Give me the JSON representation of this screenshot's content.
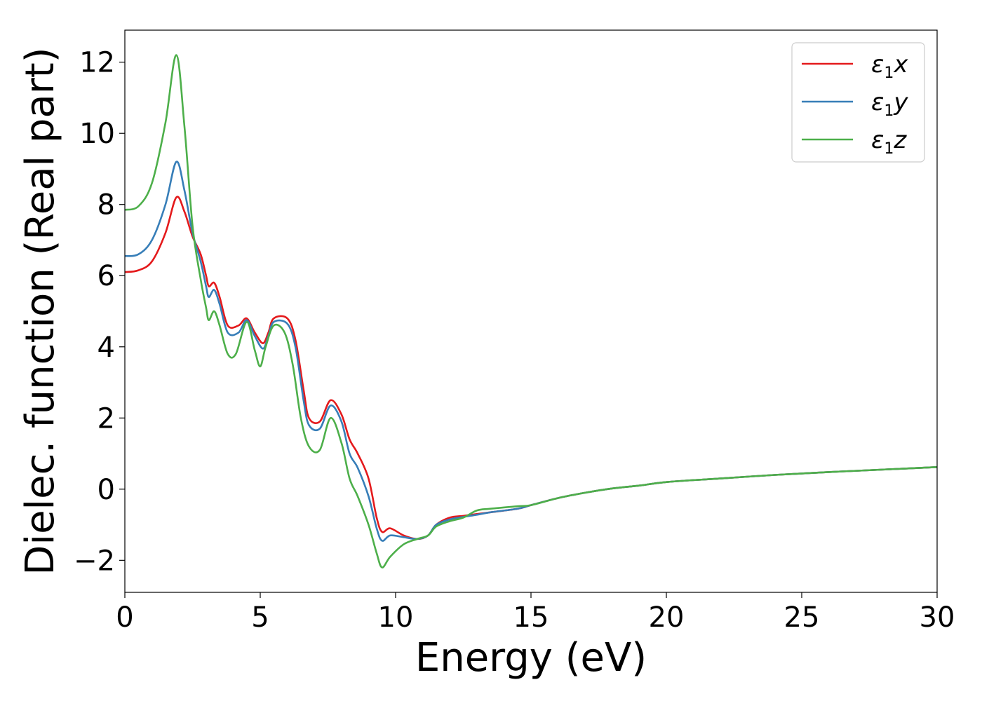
{
  "chart_data": {
    "type": "line",
    "xlabel": "Energy (eV)",
    "ylabel": "Dielec. function (Real part)",
    "xlim": [
      0,
      30
    ],
    "ylim": [
      -2.9,
      12.9
    ],
    "xticks": [
      0,
      5,
      10,
      15,
      20,
      25,
      30
    ],
    "yticks": [
      -2,
      0,
      2,
      4,
      6,
      8,
      10,
      12
    ],
    "xtick_labels": [
      "0",
      "5",
      "10",
      "15",
      "20",
      "25",
      "30"
    ],
    "ytick_labels": [
      "−2",
      "0",
      "2",
      "4",
      "6",
      "8",
      "10",
      "12"
    ],
    "grid": false,
    "legend_position": "top-right",
    "series": [
      {
        "name": "ε1x",
        "label_main": "ε",
        "label_sub": "1",
        "label_var": "x",
        "color": "#e41a1c",
        "points": [
          [
            0,
            6.1
          ],
          [
            0.5,
            6.15
          ],
          [
            1,
            6.4
          ],
          [
            1.5,
            7.2
          ],
          [
            1.9,
            8.2
          ],
          [
            2.2,
            7.8
          ],
          [
            2.5,
            7.1
          ],
          [
            2.8,
            6.6
          ],
          [
            3.0,
            6.0
          ],
          [
            3.1,
            5.7
          ],
          [
            3.3,
            5.8
          ],
          [
            3.5,
            5.4
          ],
          [
            3.8,
            4.6
          ],
          [
            4.2,
            4.6
          ],
          [
            4.5,
            4.8
          ],
          [
            4.8,
            4.4
          ],
          [
            5.1,
            4.1
          ],
          [
            5.3,
            4.4
          ],
          [
            5.5,
            4.8
          ],
          [
            6.0,
            4.8
          ],
          [
            6.3,
            4.2
          ],
          [
            6.6,
            2.8
          ],
          [
            6.8,
            2.0
          ],
          [
            7.2,
            1.9
          ],
          [
            7.6,
            2.5
          ],
          [
            8.0,
            2.1
          ],
          [
            8.3,
            1.4
          ],
          [
            8.6,
            1.0
          ],
          [
            9.0,
            0.3
          ],
          [
            9.3,
            -0.8
          ],
          [
            9.5,
            -1.2
          ],
          [
            9.8,
            -1.1
          ],
          [
            10.3,
            -1.3
          ],
          [
            10.8,
            -1.4
          ],
          [
            11.2,
            -1.3
          ],
          [
            11.5,
            -1.0
          ],
          [
            12.0,
            -0.8
          ],
          [
            12.5,
            -0.75
          ],
          [
            13.0,
            -0.7
          ],
          [
            13.5,
            -0.65
          ],
          [
            14.5,
            -0.55
          ],
          [
            15.0,
            -0.45
          ],
          [
            16.0,
            -0.25
          ],
          [
            17.0,
            -0.1
          ],
          [
            18.0,
            0.02
          ],
          [
            19.0,
            0.1
          ],
          [
            20.0,
            0.2
          ],
          [
            22.0,
            0.3
          ],
          [
            24.0,
            0.4
          ],
          [
            26.0,
            0.48
          ],
          [
            28.0,
            0.55
          ],
          [
            30.0,
            0.62
          ]
        ]
      },
      {
        "name": "ε1y",
        "label_main": "ε",
        "label_sub": "1",
        "label_var": "y",
        "color": "#377eb8",
        "points": [
          [
            0,
            6.55
          ],
          [
            0.5,
            6.6
          ],
          [
            1,
            7.0
          ],
          [
            1.5,
            8.0
          ],
          [
            1.9,
            9.2
          ],
          [
            2.2,
            8.4
          ],
          [
            2.5,
            7.2
          ],
          [
            2.8,
            6.4
          ],
          [
            3.0,
            5.7
          ],
          [
            3.1,
            5.4
          ],
          [
            3.3,
            5.6
          ],
          [
            3.5,
            5.2
          ],
          [
            3.8,
            4.4
          ],
          [
            4.2,
            4.4
          ],
          [
            4.5,
            4.75
          ],
          [
            4.8,
            4.3
          ],
          [
            5.1,
            3.95
          ],
          [
            5.3,
            4.3
          ],
          [
            5.5,
            4.7
          ],
          [
            6.0,
            4.65
          ],
          [
            6.3,
            4.0
          ],
          [
            6.6,
            2.5
          ],
          [
            6.8,
            1.8
          ],
          [
            7.2,
            1.7
          ],
          [
            7.6,
            2.35
          ],
          [
            8.0,
            1.9
          ],
          [
            8.3,
            1.0
          ],
          [
            8.6,
            0.6
          ],
          [
            9.0,
            -0.2
          ],
          [
            9.3,
            -1.1
          ],
          [
            9.5,
            -1.45
          ],
          [
            9.8,
            -1.3
          ],
          [
            10.3,
            -1.35
          ],
          [
            10.8,
            -1.4
          ],
          [
            11.2,
            -1.3
          ],
          [
            11.5,
            -1.0
          ],
          [
            12.0,
            -0.85
          ],
          [
            12.5,
            -0.78
          ],
          [
            13.0,
            -0.72
          ],
          [
            13.5,
            -0.65
          ],
          [
            14.5,
            -0.55
          ],
          [
            15.0,
            -0.45
          ],
          [
            16.0,
            -0.25
          ],
          [
            17.0,
            -0.1
          ],
          [
            18.0,
            0.02
          ],
          [
            19.0,
            0.1
          ],
          [
            20.0,
            0.2
          ],
          [
            22.0,
            0.3
          ],
          [
            24.0,
            0.4
          ],
          [
            26.0,
            0.48
          ],
          [
            28.0,
            0.55
          ],
          [
            30.0,
            0.62
          ]
        ]
      },
      {
        "name": "ε1z",
        "label_main": "ε",
        "label_sub": "1",
        "label_var": "z",
        "color": "#4daf4a",
        "points": [
          [
            0,
            7.85
          ],
          [
            0.5,
            7.95
          ],
          [
            1,
            8.6
          ],
          [
            1.5,
            10.3
          ],
          [
            1.9,
            12.2
          ],
          [
            2.2,
            10.2
          ],
          [
            2.5,
            7.4
          ],
          [
            2.8,
            5.9
          ],
          [
            3.0,
            5.1
          ],
          [
            3.1,
            4.75
          ],
          [
            3.3,
            5.0
          ],
          [
            3.5,
            4.6
          ],
          [
            3.8,
            3.8
          ],
          [
            4.1,
            3.8
          ],
          [
            4.5,
            4.7
          ],
          [
            4.8,
            3.9
          ],
          [
            5.0,
            3.45
          ],
          [
            5.2,
            4.0
          ],
          [
            5.5,
            4.6
          ],
          [
            5.9,
            4.4
          ],
          [
            6.2,
            3.5
          ],
          [
            6.5,
            2.0
          ],
          [
            6.8,
            1.2
          ],
          [
            7.2,
            1.1
          ],
          [
            7.6,
            2.0
          ],
          [
            8.0,
            1.3
          ],
          [
            8.3,
            0.3
          ],
          [
            8.6,
            -0.2
          ],
          [
            9.0,
            -1.0
          ],
          [
            9.3,
            -1.8
          ],
          [
            9.5,
            -2.2
          ],
          [
            9.8,
            -1.9
          ],
          [
            10.3,
            -1.55
          ],
          [
            10.8,
            -1.4
          ],
          [
            11.2,
            -1.3
          ],
          [
            11.5,
            -1.05
          ],
          [
            12.0,
            -0.9
          ],
          [
            12.5,
            -0.8
          ],
          [
            13.0,
            -0.6
          ],
          [
            13.5,
            -0.55
          ],
          [
            14.5,
            -0.48
          ],
          [
            15.0,
            -0.45
          ],
          [
            16.0,
            -0.25
          ],
          [
            17.0,
            -0.1
          ],
          [
            18.0,
            0.02
          ],
          [
            19.0,
            0.1
          ],
          [
            20.0,
            0.2
          ],
          [
            22.0,
            0.3
          ],
          [
            24.0,
            0.4
          ],
          [
            26.0,
            0.48
          ],
          [
            28.0,
            0.55
          ],
          [
            30.0,
            0.62
          ]
        ]
      }
    ]
  }
}
